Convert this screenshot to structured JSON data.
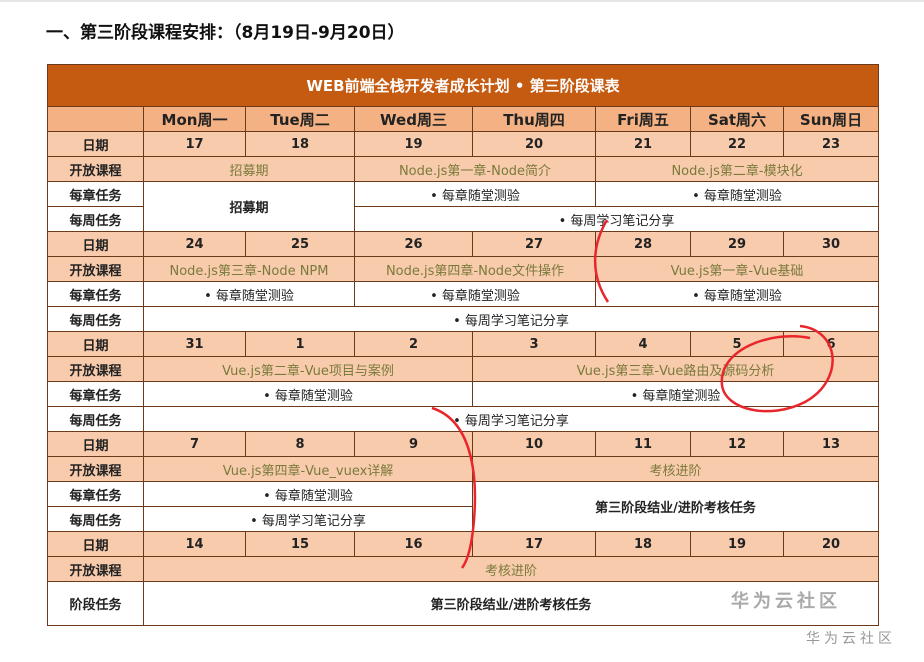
{
  "heading": "一、第三阶段课程安排：（8月19日-9月20日）",
  "table_title": "WEB前端全栈开发者成长计划 • 第三阶段课表",
  "days": [
    "Mon周一",
    "Tue周二",
    "Wed周三",
    "Thu周四",
    "Fri周五",
    "Sat周六",
    "Sun周日"
  ],
  "labels": {
    "date": "日期",
    "course": "开放课程",
    "chapter": "每章任务",
    "weekly": "每周任务",
    "stage": "阶段任务"
  },
  "weeks": [
    {
      "dates": [
        "17",
        "18",
        "19",
        "20",
        "21",
        "22",
        "23"
      ],
      "courses": [
        "招募期",
        "Node.js第一章-Node简介",
        "Node.js第二章-模块化"
      ],
      "chapter": [
        "招募期",
        "• 每章随堂测验",
        "• 每章随堂测验"
      ],
      "weekly": [
        "• 每周学习笔记分享"
      ]
    },
    {
      "dates": [
        "24",
        "25",
        "26",
        "27",
        "28",
        "29",
        "30"
      ],
      "courses": [
        "Node.js第三章-Node NPM",
        "Node.js第四章-Node文件操作",
        "Vue.js第一章-Vue基础"
      ],
      "chapter": [
        "• 每章随堂测验",
        "• 每章随堂测验",
        "• 每章随堂测验"
      ],
      "weekly": [
        "• 每周学习笔记分享"
      ]
    },
    {
      "dates": [
        "31",
        "1",
        "2",
        "3",
        "4",
        "5",
        "6"
      ],
      "courses": [
        "Vue.js第二章-Vue项目与案例",
        "Vue.js第三章-Vue路由及源码分析"
      ],
      "chapter": [
        "• 每章随堂测验",
        "• 每章随堂测验"
      ],
      "weekly": [
        "• 每周学习笔记分享"
      ]
    },
    {
      "dates": [
        "7",
        "8",
        "9",
        "10",
        "11",
        "12",
        "13"
      ],
      "courses": [
        "Vue.js第四章-Vue_vuex详解",
        "考核进阶"
      ],
      "chapter": [
        "• 每章随堂测验",
        "第三阶段结业/进阶考核任务"
      ],
      "weekly": [
        "• 每周学习笔记分享"
      ]
    },
    {
      "dates": [
        "14",
        "15",
        "16",
        "17",
        "18",
        "19",
        "20"
      ],
      "courses": [
        "考核进阶"
      ],
      "stage": "第三阶段结业/进阶考核任务"
    }
  ],
  "watermark": "华为云社区",
  "annotation_color": "#e8262b"
}
